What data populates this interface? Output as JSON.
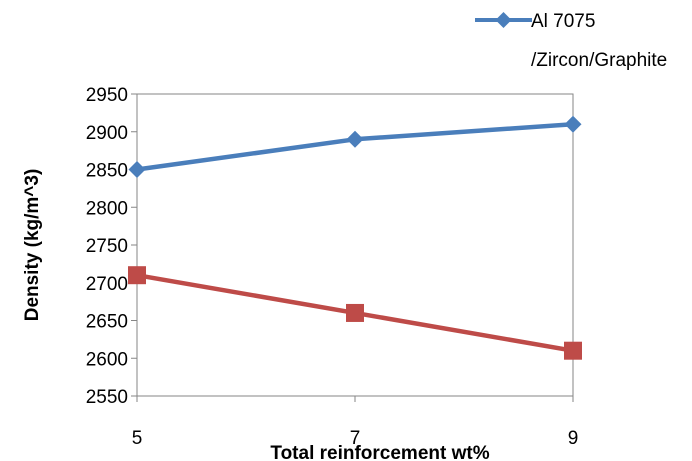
{
  "chart_data": {
    "type": "line",
    "title": "",
    "xlabel": "Total reinforcement wt%",
    "ylabel": "Density (kg/m^3)",
    "x": [
      5,
      7,
      9
    ],
    "x_ticks": [
      "5",
      "7",
      "9"
    ],
    "ylim": [
      2550,
      2950
    ],
    "y_ticks": [
      2550,
      2600,
      2650,
      2700,
      2750,
      2800,
      2850,
      2900,
      2950
    ],
    "grid": false,
    "legend_position": "top-right",
    "series": [
      {
        "name_lines": [
          "Al 7075",
          "/Zircon/Graphite"
        ],
        "values": [
          2850,
          2890,
          2910
        ],
        "color": "#4a7ebb",
        "marker": "diamond"
      },
      {
        "values": [
          2710,
          2660,
          2610
        ],
        "color": "#be4b48",
        "marker": "square"
      }
    ]
  }
}
